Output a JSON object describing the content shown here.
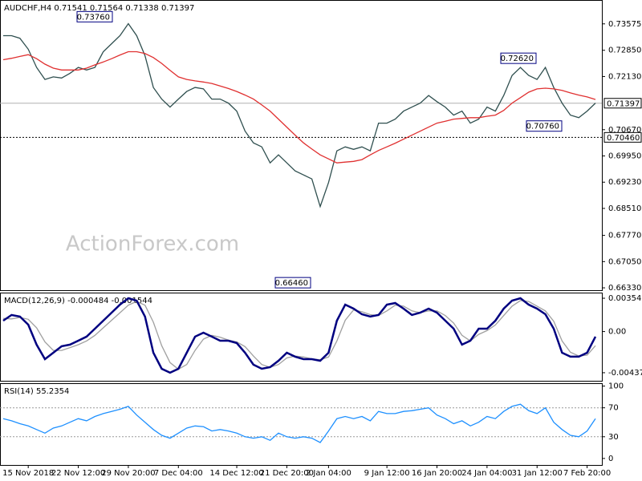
{
  "watermark": "ActionForex.com",
  "chart_data": [
    {
      "type": "line",
      "title": "AUDCHF,H4  0.71541 0.71564 0.71338 0.71397",
      "ylim": [
        0.7423,
        0.66265
      ],
      "yticks": [
        0.73575,
        {
          "value": 0.7285,
          "label": "0.72850"
        },
        {
          "value": 0.7213,
          "label": "0.72130"
        },
        {
          "value": 0.7067,
          "label": "0.70670"
        },
        {
          "value": 0.6995,
          "label": "0.69950"
        },
        {
          "value": 0.6923,
          "label": "0.69230"
        },
        {
          "value": 0.6851,
          "label": "0.68510"
        },
        {
          "value": 0.6777,
          "label": "0.67770"
        },
        {
          "value": 0.6705,
          "label": "0.67050"
        },
        {
          "value": 0.6633,
          "label": "0.66330"
        }
      ],
      "hlines": [
        {
          "value": 0.71397,
          "label": "0.71397",
          "style": "solid",
          "color": "#b0b0b0"
        },
        {
          "value": 0.7046,
          "label": "0.70460",
          "style": "dotted",
          "color": "#000000"
        }
      ],
      "annotations": [
        {
          "value": 0.7376,
          "label": "0.73760"
        },
        {
          "value": 0.7262,
          "label": "0.72620"
        },
        {
          "value": 0.7076,
          "label": "0.70760"
        },
        {
          "value": 0.6646,
          "label": "0.66460"
        }
      ],
      "series": [
        {
          "color": "#2f4f4f",
          "values": [
            0.7325,
            0.7325,
            0.7318,
            0.7288,
            0.7238,
            0.7205,
            0.7212,
            0.7209,
            0.7222,
            0.7238,
            0.7231,
            0.7238,
            0.7281,
            0.7303,
            0.7325,
            0.7358,
            0.7325,
            0.727,
            0.7183,
            0.7151,
            0.7129,
            0.7151,
            0.7172,
            0.7183,
            0.7179,
            0.7151,
            0.7151,
            0.714,
            0.7118,
            0.7063,
            0.7031,
            0.702,
            0.6976,
            0.6998,
            0.6976,
            0.6954,
            0.6943,
            0.6932,
            0.6856,
            0.6922,
            0.7009,
            0.702,
            0.7013,
            0.702,
            0.7009,
            0.7085,
            0.7085,
            0.7096,
            0.7118,
            0.7129,
            0.714,
            0.7161,
            0.7144,
            0.7129,
            0.7107,
            0.7118,
            0.7085,
            0.7096,
            0.7129,
            0.7118,
            0.7161,
            0.7216,
            0.7238,
            0.7216,
            0.7205,
            0.7238,
            0.7183,
            0.714,
            0.7107,
            0.71,
            0.7118,
            0.714
          ]
        },
        {
          "color": "#e03030",
          "values": [
            0.7259,
            0.7263,
            0.7268,
            0.7273,
            0.7262,
            0.7247,
            0.7236,
            0.7231,
            0.7231,
            0.7231,
            0.7236,
            0.7245,
            0.7253,
            0.7262,
            0.7272,
            0.7281,
            0.7281,
            0.7276,
            0.7265,
            0.7249,
            0.723,
            0.7212,
            0.7205,
            0.7201,
            0.7198,
            0.7194,
            0.7187,
            0.718,
            0.7172,
            0.7162,
            0.7151,
            0.7135,
            0.7118,
            0.7096,
            0.7074,
            0.7052,
            0.7031,
            0.7014,
            0.6998,
            0.6987,
            0.6976,
            0.6978,
            0.698,
            0.6985,
            0.6998,
            0.701,
            0.702,
            0.703,
            0.7041,
            0.7052,
            0.7063,
            0.7074,
            0.7085,
            0.709,
            0.7096,
            0.7098,
            0.71,
            0.71,
            0.7104,
            0.7107,
            0.712,
            0.714,
            0.7155,
            0.717,
            0.7179,
            0.7181,
            0.7179,
            0.7175,
            0.7168,
            0.7162,
            0.7157,
            0.715
          ]
        }
      ]
    },
    {
      "type": "line",
      "title": "MACD(12,26,9) -0.000484 -0.001544",
      "ylim": [
        0.00414,
        -0.00523
      ],
      "yticks": [
        0.003542,
        {
          "value": 0,
          "label": "0.00"
        },
        -0.004373
      ],
      "series": [
        {
          "color": "#a0a0a0",
          "values": [
            0.0014,
            0.00135,
            0.0015,
            0.0013,
            0.0004,
            -0.0011,
            -0.002,
            -0.002,
            -0.0017,
            -0.0014,
            -0.001,
            -0.0004,
            0.0004,
            0.0012,
            0.002,
            0.0028,
            0.0032,
            0.0028,
            0.001,
            -0.0015,
            -0.0033,
            -0.004,
            -0.0035,
            -0.002,
            -0.0008,
            -0.0004,
            -0.0006,
            -0.0009,
            -0.0011,
            -0.0016,
            -0.0026,
            -0.0035,
            -0.0038,
            -0.0035,
            -0.0028,
            -0.0026,
            -0.0027,
            -0.0029,
            -0.003,
            -0.0027,
            -0.001,
            0.0012,
            0.0023,
            0.0021,
            0.0018,
            0.0017,
            0.0022,
            0.0028,
            0.0027,
            0.0022,
            0.002,
            0.0022,
            0.0022,
            0.0017,
            0.0009,
            -0.0004,
            -0.001,
            -0.0003,
            0.0001,
            0.0007,
            0.0017,
            0.0027,
            0.0033,
            0.0032,
            0.0027,
            0.0022,
            0.0011,
            -0.001,
            -0.0022,
            -0.0026,
            -0.0025,
            -0.0015
          ]
        },
        {
          "color": "#000080",
          "values": [
            0.00116,
            0.00176,
            0.00159,
            0.00073,
            -0.00139,
            -0.00293,
            -0.00225,
            -0.00156,
            -0.00139,
            -0.00097,
            -0.00054,
            0.00031,
            0.00116,
            0.00201,
            0.00286,
            0.00354,
            0.00329,
            0.00159,
            -0.00225,
            -0.00395,
            -0.00437,
            -0.00395,
            -0.00225,
            -0.00054,
            -0.00012,
            -0.00054,
            -0.00097,
            -0.00097,
            -0.00122,
            -0.00225,
            -0.00352,
            -0.00395,
            -0.00378,
            -0.0031,
            -0.00225,
            -0.00267,
            -0.00293,
            -0.00293,
            -0.0031,
            -0.00225,
            0.00116,
            0.00286,
            0.00244,
            0.00184,
            0.00159,
            0.00176,
            0.00286,
            0.00303,
            0.00244,
            0.00176,
            0.00201,
            0.00244,
            0.00201,
            0.00116,
            0.00031,
            -0.00139,
            -0.00097,
            0.00031,
            0.00031,
            0.00116,
            0.00244,
            0.00329,
            0.00354,
            0.00286,
            0.00244,
            0.00184,
            0.00031,
            -0.00225,
            -0.00267,
            -0.00267,
            -0.00225,
            -0.00054
          ]
        }
      ]
    },
    {
      "type": "line",
      "title": "RSI(14) 55.2354",
      "ylim": [
        104,
        -9
      ],
      "yticks": [
        100,
        70,
        30,
        0
      ],
      "levels": [
        70,
        30
      ],
      "categories": [
        null,
        null,
        null,
        "15 Nov 2018",
        null,
        null,
        null,
        null,
        null,
        "22 Nov 12:00",
        null,
        null,
        null,
        null,
        null,
        "29 Nov 20:00",
        null,
        null,
        null,
        null,
        null,
        "7 Dec 04:00",
        null,
        null,
        null,
        null,
        null,
        null,
        "14 Dec 12:00",
        null,
        null,
        null,
        null,
        null,
        "21 Dec 20:00",
        null,
        null,
        null,
        null,
        "2 Jan 04:00",
        null,
        null,
        null,
        null,
        null,
        null,
        "9 Jan 12:00",
        null,
        null,
        null,
        null,
        null,
        "16 Jan 20:00",
        null,
        null,
        null,
        null,
        null,
        "24 Jan 04:00",
        null,
        null,
        null,
        null,
        null,
        "31 Jan 12:00",
        null,
        null,
        null,
        null,
        null,
        "7 Feb 20:00",
        null
      ],
      "series": [
        {
          "color": "#1e90ff",
          "values": [
            55,
            52,
            48,
            45,
            40,
            35,
            42,
            45,
            50,
            55,
            52,
            58,
            62,
            65,
            68,
            72,
            60,
            50,
            40,
            32,
            28,
            35,
            42,
            45,
            44,
            38,
            40,
            38,
            35,
            30,
            28,
            30,
            25,
            35,
            30,
            28,
            30,
            28,
            22,
            38,
            55,
            58,
            55,
            58,
            52,
            65,
            62,
            62,
            65,
            66,
            68,
            70,
            60,
            55,
            48,
            52,
            45,
            50,
            58,
            55,
            65,
            72,
            75,
            66,
            62,
            70,
            50,
            40,
            32,
            30,
            38,
            55
          ]
        }
      ]
    }
  ]
}
